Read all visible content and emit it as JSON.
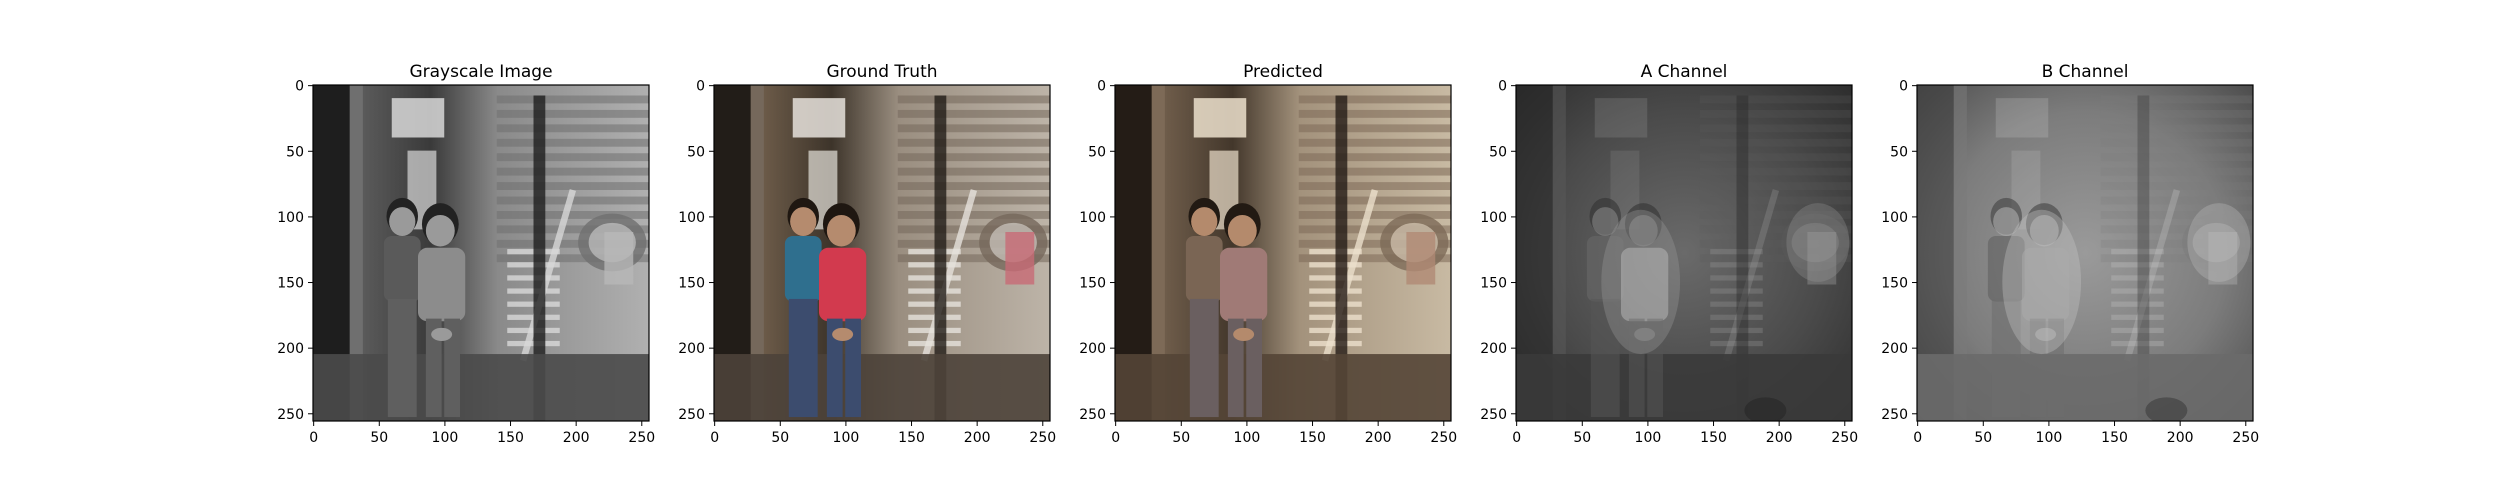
{
  "figure": {
    "panels": [
      {
        "title": "Grayscale Image",
        "image": "grayscale photo of two children standing in a wooden shack doorway",
        "mode": "gray",
        "x_ticks": [
          "0",
          "50",
          "100",
          "150",
          "200",
          "250"
        ],
        "y_ticks": [
          "0",
          "50",
          "100",
          "150",
          "200",
          "250"
        ]
      },
      {
        "title": "Ground Truth",
        "image": "color photo of two children, one in a blue shirt and one in a red shirt, in a wooden shack doorway",
        "mode": "color",
        "x_ticks": [
          "0",
          "50",
          "100",
          "150",
          "200",
          "250"
        ],
        "y_ticks": [
          "0",
          "50",
          "100",
          "150",
          "200",
          "250"
        ]
      },
      {
        "title": "Predicted",
        "image": "sepia-toned colorized photo of the same two children",
        "mode": "sepia",
        "x_ticks": [
          "0",
          "50",
          "100",
          "150",
          "200",
          "250"
        ],
        "y_ticks": [
          "0",
          "50",
          "100",
          "150",
          "200",
          "250"
        ]
      },
      {
        "title": "A Channel",
        "image": "blurry dark gray map of the predicted A color channel",
        "mode": "a-channel",
        "x_ticks": [
          "0",
          "50",
          "100",
          "150",
          "200",
          "250"
        ],
        "y_ticks": [
          "0",
          "50",
          "100",
          "150",
          "200",
          "250"
        ]
      },
      {
        "title": "B Channel",
        "image": "blurry gray map of the predicted B color channel",
        "mode": "b-channel",
        "x_ticks": [
          "0",
          "50",
          "100",
          "150",
          "200",
          "250"
        ],
        "y_ticks": [
          "0",
          "50",
          "100",
          "150",
          "200",
          "250"
        ]
      }
    ],
    "axis_range": [
      0,
      256
    ]
  }
}
